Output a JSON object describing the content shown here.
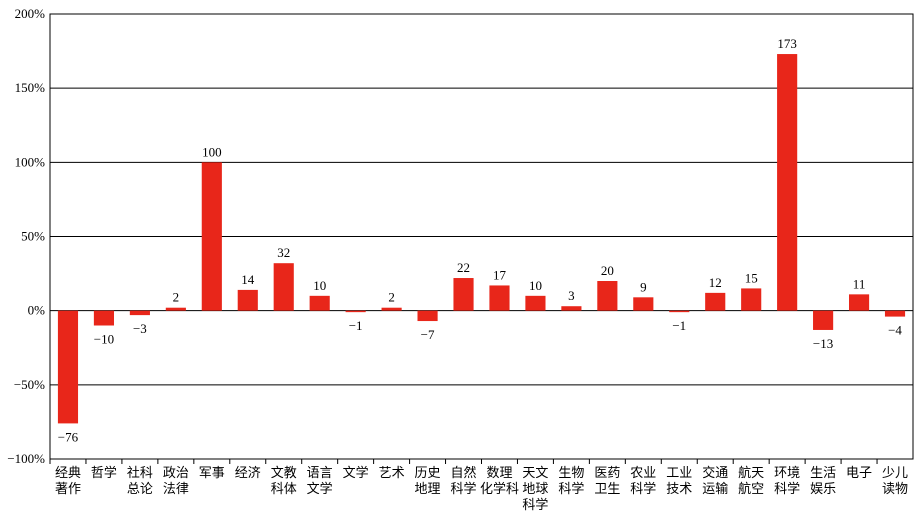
{
  "chart_data": {
    "type": "bar",
    "categories": [
      [
        "经典",
        "著作"
      ],
      [
        "哲学"
      ],
      [
        "社科",
        "总论"
      ],
      [
        "政治",
        "法律"
      ],
      [
        "军事"
      ],
      [
        "经济"
      ],
      [
        "文教",
        "科体"
      ],
      [
        "语言",
        "文学"
      ],
      [
        "文学"
      ],
      [
        "艺术"
      ],
      [
        "历史",
        "地理"
      ],
      [
        "自然",
        "科学"
      ],
      [
        "数理",
        "化学科"
      ],
      [
        "天文",
        "地球",
        "科学"
      ],
      [
        "生物",
        "科学"
      ],
      [
        "医药",
        "卫生"
      ],
      [
        "农业",
        "科学"
      ],
      [
        "工业",
        "技术"
      ],
      [
        "交通",
        "运输"
      ],
      [
        "航天",
        "航空"
      ],
      [
        "环境",
        "科学"
      ],
      [
        "生活",
        "娱乐"
      ],
      [
        "电子"
      ],
      [
        "少儿",
        "读物"
      ]
    ],
    "values": [
      -76,
      -10,
      -3,
      2,
      100,
      14,
      32,
      10,
      -1,
      2,
      -7,
      22,
      17,
      10,
      3,
      20,
      9,
      -1,
      12,
      15,
      173,
      -13,
      11,
      -4
    ],
    "value_labels": [
      "−76",
      "−10",
      "−3",
      "2",
      "100",
      "14",
      "32",
      "10",
      "−1",
      "2",
      "−7",
      "22",
      "17",
      "10",
      "3",
      "20",
      "9",
      "−1",
      "12",
      "15",
      "173",
      "−13",
      "11",
      "−4"
    ],
    "color": "#e8261a",
    "ylim": [
      -100,
      200
    ],
    "yticks": [
      {
        "value": -100,
        "label": "−100%"
      },
      {
        "value": -50,
        "label": "−50%"
      },
      {
        "value": 0,
        "label": "0%"
      },
      {
        "value": 50,
        "label": "50%"
      },
      {
        "value": 100,
        "label": "100%"
      },
      {
        "value": 150,
        "label": "150%"
      },
      {
        "value": 200,
        "label": "200%"
      }
    ],
    "grid": true
  }
}
